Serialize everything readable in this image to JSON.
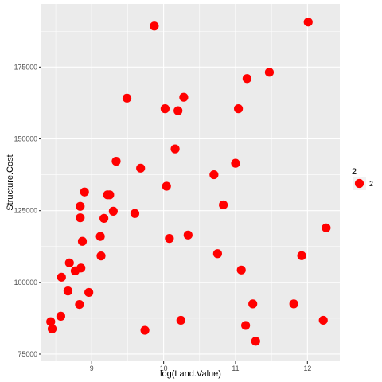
{
  "chart_data": {
    "type": "scatter",
    "title": "",
    "xlabel": "log(Land.Value)",
    "ylabel": "Structure.Cost",
    "xlim": [
      8.3,
      12.45
    ],
    "ylim": [
      72500,
      197000
    ],
    "x_ticks": [
      9,
      10,
      11,
      12
    ],
    "x_tick_labels": [
      "9",
      "10",
      "11",
      "12"
    ],
    "y_ticks": [
      75000,
      100000,
      125000,
      150000,
      175000
    ],
    "y_tick_labels": [
      "75000",
      "100000",
      "125000",
      "150000",
      "175000"
    ],
    "grid": true,
    "legend": {
      "title": "2",
      "position": "right",
      "entries": [
        "2"
      ]
    },
    "series": [
      {
        "name": "2",
        "color": "#ff0000",
        "points": [
          [
            8.43,
            86300
          ],
          [
            8.45,
            83800
          ],
          [
            8.57,
            88200
          ],
          [
            8.58,
            101800
          ],
          [
            8.67,
            97000
          ],
          [
            8.69,
            106800
          ],
          [
            8.77,
            104000
          ],
          [
            8.83,
            92300
          ],
          [
            8.84,
            126500
          ],
          [
            8.84,
            122500
          ],
          [
            8.85,
            105000
          ],
          [
            8.87,
            114300
          ],
          [
            8.9,
            131500
          ],
          [
            8.96,
            96500
          ],
          [
            9.12,
            116000
          ],
          [
            9.13,
            109200
          ],
          [
            9.17,
            122300
          ],
          [
            9.22,
            130500
          ],
          [
            9.25,
            130500
          ],
          [
            9.3,
            124800
          ],
          [
            9.34,
            142200
          ],
          [
            9.49,
            164200
          ],
          [
            9.6,
            124000
          ],
          [
            9.68,
            139800
          ],
          [
            9.74,
            83300
          ],
          [
            9.87,
            189300
          ],
          [
            10.02,
            160500
          ],
          [
            10.04,
            133500
          ],
          [
            10.08,
            115300
          ],
          [
            10.16,
            146500
          ],
          [
            10.2,
            159800
          ],
          [
            10.24,
            86800
          ],
          [
            10.28,
            164500
          ],
          [
            10.34,
            116500
          ],
          [
            10.7,
            137500
          ],
          [
            10.75,
            110000
          ],
          [
            10.83,
            127000
          ],
          [
            11.0,
            141500
          ],
          [
            11.04,
            160500
          ],
          [
            11.08,
            104300
          ],
          [
            11.14,
            85000
          ],
          [
            11.16,
            171000
          ],
          [
            11.24,
            92500
          ],
          [
            11.28,
            79500
          ],
          [
            11.47,
            173200
          ],
          [
            11.81,
            92500
          ],
          [
            11.92,
            109300
          ],
          [
            12.01,
            190700
          ],
          [
            12.22,
            86800
          ],
          [
            12.26,
            119000
          ]
        ]
      }
    ]
  }
}
